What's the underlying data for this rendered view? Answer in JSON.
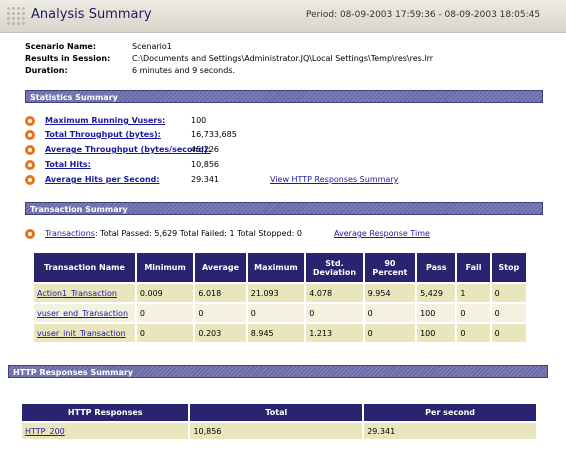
{
  "header": {
    "title": "Analysis Summary",
    "period": "Period: 08-09-2003 17:59:36 - 08-09-2003 18:05:45"
  },
  "info": [
    {
      "label": "Scenario Name:",
      "value": "Scenario1"
    },
    {
      "label": "Results in Session:",
      "value": "C:\\Documents and Settings\\Administrator.JQ\\Local Settings\\Temp\\res\\res.lrr"
    },
    {
      "label": "Duration:",
      "value": "6 minutes and 9 seconds."
    }
  ],
  "statistics": {
    "title": "Statistics Summary",
    "rows": [
      {
        "label": "Maximum Running Vusers:",
        "value": "100"
      },
      {
        "label": "Total Throughput (bytes):",
        "value": "16,733,685"
      },
      {
        "label": "Average Throughput (bytes/second):",
        "value": "45,226"
      },
      {
        "label": "Total Hits:",
        "value": "10,856"
      },
      {
        "label": "Average Hits per Second:",
        "value": "29.341"
      }
    ],
    "http_link": "View HTTP Responses Summary"
  },
  "transactions": {
    "title": "Transaction Summary",
    "link_label": "Transactions",
    "totals": ": Total Passed: 5,629 Total Failed: 1 Total Stopped: 0",
    "avg_link": "Average Response Time",
    "columns": [
      "Transaction Name",
      "Minimum",
      "Average",
      "Maximum",
      "Std. Deviation",
      "90 Percent",
      "Pass",
      "Fail",
      "Stop"
    ],
    "rows": [
      [
        "Action1_Transaction",
        "0.009",
        "6.018",
        "21.093",
        "4.078",
        "9.954",
        "5,429",
        "1",
        "0"
      ],
      [
        "vuser_end_Transaction",
        "0",
        "0",
        "0",
        "0",
        "0",
        "100",
        "0",
        "0"
      ],
      [
        "vuser_init_Transaction",
        "0",
        "0.203",
        "8.945",
        "1.213",
        "0",
        "100",
        "0",
        "0"
      ]
    ]
  },
  "http": {
    "title": "HTTP Responses Summary",
    "columns": [
      "HTTP Responses",
      "Total",
      "Per second"
    ],
    "rows": [
      [
        "HTTP_200",
        "10,856",
        "29.341"
      ]
    ]
  },
  "colors": {
    "bar": "#6a6aa8",
    "table_header": "#2a2470",
    "row_a": "#e9e6be",
    "row_b": "#f3f1e1",
    "bullet": "#e5741e"
  }
}
